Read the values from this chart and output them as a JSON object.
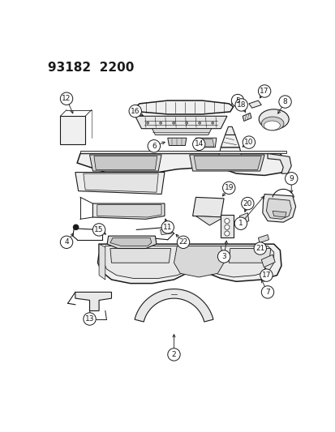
{
  "title": "93182  2200",
  "bg_color": "#ffffff",
  "line_color": "#1a1a1a",
  "title_fontsize": 11,
  "figsize": [
    4.14,
    5.33
  ],
  "dpi": 100
}
